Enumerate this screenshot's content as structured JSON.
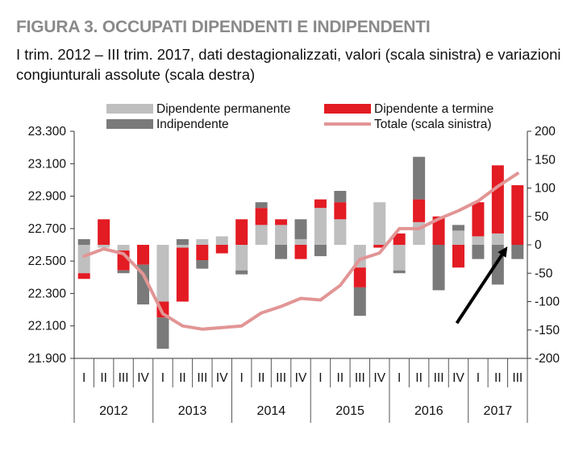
{
  "header": {
    "title": "FIGURA 3. OCCUPATI  DIPENDENTI E INDIPENDENTI",
    "subtitle": "I trim. 2012 – III trim. 2017, dati destagionalizzati, valori  (scala sinistra) e variazioni congiunturali assolute (scala destra)"
  },
  "colors": {
    "permanente": "#bfbfbf",
    "termine": "#e31b23",
    "indipendente": "#7a7a7a",
    "totale": "#e29595",
    "arrow": "#000000"
  },
  "chart_data": {
    "type": "bar",
    "categories": [
      "I",
      "II",
      "III",
      "IV",
      "I",
      "II",
      "III",
      "IV",
      "I",
      "II",
      "III",
      "IV",
      "I",
      "II",
      "III",
      "IV",
      "I",
      "II",
      "III",
      "IV",
      "I",
      "II",
      "III"
    ],
    "years": [
      {
        "label": "2012",
        "start": 0,
        "count": 4
      },
      {
        "label": "2013",
        "start": 4,
        "count": 4
      },
      {
        "label": "2014",
        "start": 8,
        "count": 4
      },
      {
        "label": "2015",
        "start": 12,
        "count": 4
      },
      {
        "label": "2016",
        "start": 16,
        "count": 4
      },
      {
        "label": "2017",
        "start": 20,
        "count": 3
      }
    ],
    "series": [
      {
        "name": "Dipendente permanente",
        "axis": "right",
        "stack": true,
        "values": [
          -50,
          -5,
          -10,
          0,
          -100,
          -5,
          10,
          15,
          -45,
          35,
          35,
          10,
          65,
          45,
          -40,
          75,
          -45,
          40,
          0,
          25,
          15,
          20,
          0
        ]
      },
      {
        "name": "Dipendente a termine",
        "axis": "right",
        "stack": true,
        "values": [
          -10,
          45,
          -35,
          -35,
          -28,
          -95,
          -27,
          -15,
          45,
          30,
          10,
          -25,
          15,
          30,
          -35,
          -5,
          20,
          40,
          50,
          -40,
          60,
          120,
          105
        ]
      },
      {
        "name": "Indipendente",
        "axis": "right",
        "stack": true,
        "values": [
          10,
          0,
          -5,
          -70,
          -55,
          10,
          -15,
          0,
          -7,
          10,
          -25,
          35,
          -20,
          20,
          -50,
          0,
          -5,
          75,
          -80,
          10,
          -25,
          -70,
          -25
        ]
      },
      {
        "name": "Totale (scala sinistra)",
        "axis": "left",
        "type": "line",
        "values": [
          22530,
          22575,
          22545,
          22420,
          22175,
          22100,
          22080,
          22090,
          22100,
          22180,
          22220,
          22270,
          22260,
          22350,
          22510,
          22550,
          22700,
          22700,
          22760,
          22810,
          22870,
          22960,
          23040
        ]
      }
    ],
    "left_axis": {
      "min": 21900,
      "max": 23300,
      "ticks": [
        "21.900",
        "22.100",
        "22.300",
        "22.500",
        "22.700",
        "22.900",
        "23.100",
        "23.300"
      ]
    },
    "right_axis": {
      "min": -200,
      "max": 200,
      "ticks": [
        "-200",
        "-150",
        "-100",
        "-50",
        "0",
        "50",
        "100",
        "150",
        "200"
      ]
    },
    "legend": {
      "placement": "top",
      "items": [
        {
          "label": "Dipendente permanente",
          "key": "permanente",
          "shape": "box"
        },
        {
          "label": "Dipendente a termine",
          "key": "termine",
          "shape": "box"
        },
        {
          "label": "Indipendente",
          "key": "indipendente",
          "shape": "box"
        },
        {
          "label": "Totale (scala sinistra)",
          "key": "totale",
          "shape": "line"
        }
      ]
    },
    "annotations": [
      {
        "type": "arrow",
        "from_category": 19,
        "from_value_right": -145,
        "to_category": 21,
        "to_value_right": 0
      }
    ],
    "grid": false
  }
}
